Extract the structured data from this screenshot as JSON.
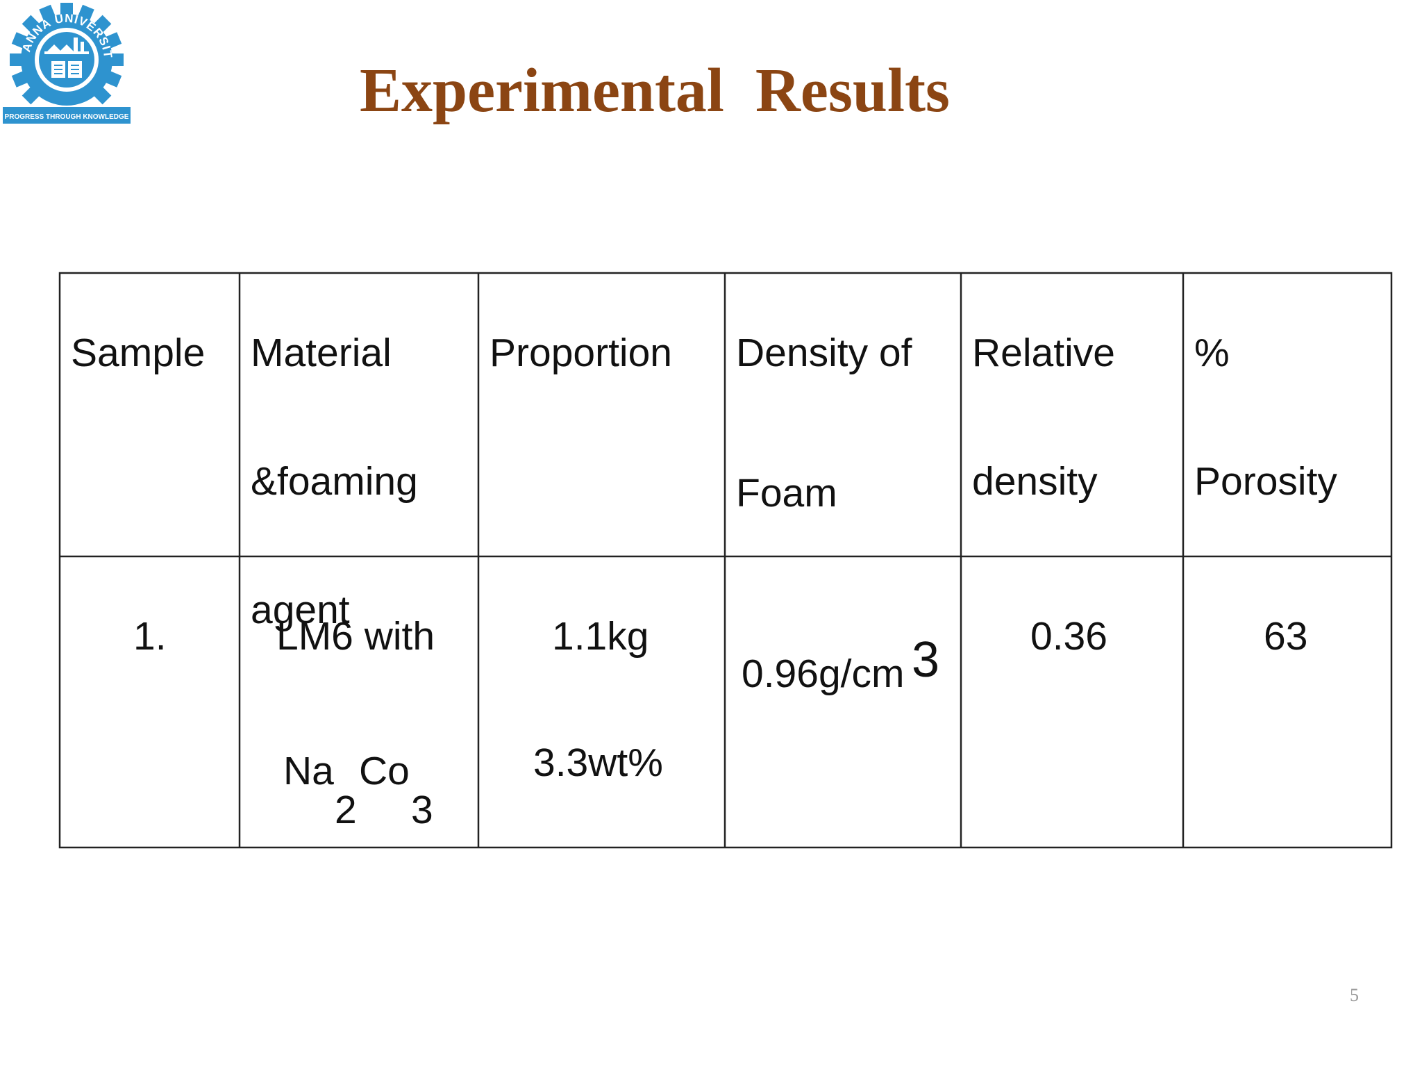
{
  "slide": {
    "title": "Experimental  Results",
    "page_number": "5",
    "logo": {
      "name": "ANNA UNIVERSITY",
      "motto": "PROGRESS THROUGH KNOWLEDGE",
      "color": "#2e93cf"
    },
    "title_color": "#8B4513"
  },
  "table": {
    "headers": {
      "sample": "Sample",
      "material_1": "Material",
      "material_2": "&foaming",
      "material_3": "agent",
      "proportion": "Proportion",
      "density_1": "Density of",
      "density_2": "Foam",
      "relative_1": "Relative",
      "relative_2": "density",
      "porosity_1": "%",
      "porosity_2": "Porosity"
    },
    "row": {
      "sample": "1.",
      "material_1": "LM6 with",
      "material_na": "Na",
      "material_na_sub": "2",
      "material_co": "Co",
      "material_co_sub": "3",
      "proportion_1": "1.1kg",
      "proportion_2": "3.3wt%",
      "density": "0.96g/cm",
      "density_sup": "3",
      "relative": "0.36",
      "porosity": "63"
    }
  }
}
